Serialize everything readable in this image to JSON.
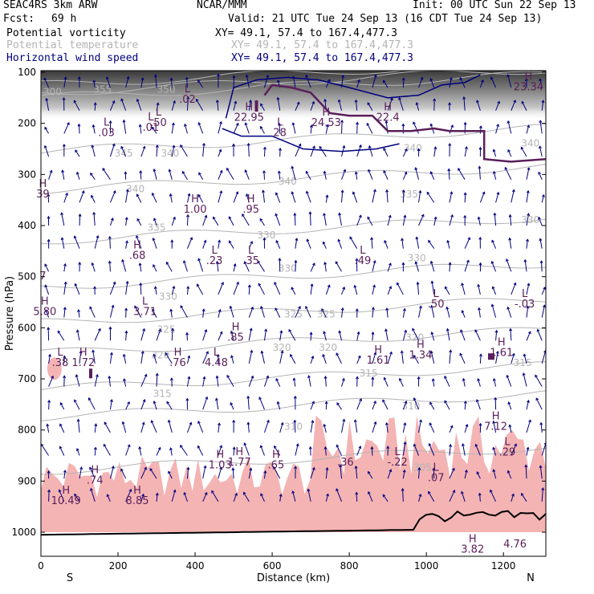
{
  "header": {
    "model": "SEAC4RS  3km ARW",
    "org": "NCAR/MMM",
    "init": "Init: 00 UTC Sun 22 Sep 13",
    "fcst_label": "Fcst:",
    "fcst_value": "69 h",
    "valid": "Valid: 21 UTC Tue 24 Sep 13 (16 CDT Tue 24 Sep 13)",
    "fields": [
      {
        "label": "Potential vorticity",
        "xy": "XY=  49.1, 57.4 to 167.4,477.3",
        "color": "#000000"
      },
      {
        "label": "Potential temperature",
        "xy": "XY=  49.1, 57.4 to 167.4,477.3",
        "color": "#b4b4b4"
      },
      {
        "label": "Horizontal wind speed",
        "xy": "XY=  49.1, 57.4 to 167.4,477.3",
        "color": "#00007f"
      }
    ]
  },
  "chart_data": {
    "type": "cross-section",
    "xlabel": "Distance (km)",
    "ylabel": "Pressure (hPa)",
    "xlim": [
      0,
      1310
    ],
    "ylim": [
      1050,
      100
    ],
    "x_ticks": [
      "0",
      "200",
      "400",
      "600",
      "800",
      "1000",
      "1200"
    ],
    "x_tick_values": [
      0,
      200,
      400,
      600,
      800,
      1000,
      1200
    ],
    "y_ticks": [
      "100",
      "200",
      "300",
      "400",
      "500",
      "600",
      "700",
      "800",
      "900",
      "1000"
    ],
    "y_tick_values": [
      100,
      200,
      300,
      400,
      500,
      600,
      700,
      800,
      900,
      1000
    ],
    "endpoints": {
      "left": "S",
      "right": "N"
    },
    "colors": {
      "theta": "#b4b4b4",
      "wind": "#00007f",
      "pv": "#5a1e5a",
      "shade": "#f4b4b4",
      "terrain": "#000000"
    },
    "theta_labels": [
      {
        "text": "300",
        "x": 30,
        "p": 145
      },
      {
        "text": "355",
        "x": 160,
        "p": 140
      },
      {
        "text": "350",
        "x": 325,
        "p": 140
      },
      {
        "text": "345",
        "x": 215,
        "p": 265
      },
      {
        "text": "340",
        "x": 335,
        "p": 265
      },
      {
        "text": "340",
        "x": 245,
        "p": 335
      },
      {
        "text": "340",
        "x": 640,
        "p": 320
      },
      {
        "text": "340",
        "x": 965,
        "p": 255
      },
      {
        "text": "340",
        "x": 1270,
        "p": 245
      },
      {
        "text": "335",
        "x": 955,
        "p": 345
      },
      {
        "text": "335",
        "x": 300,
        "p": 410
      },
      {
        "text": "330",
        "x": 585,
        "p": 425
      },
      {
        "text": "330",
        "x": 1270,
        "p": 395
      },
      {
        "text": "330",
        "x": 640,
        "p": 490
      },
      {
        "text": "330",
        "x": 975,
        "p": 470
      },
      {
        "text": "330",
        "x": 330,
        "p": 545
      },
      {
        "text": "325",
        "x": 325,
        "p": 610
      },
      {
        "text": "325",
        "x": 655,
        "p": 580
      },
      {
        "text": "325",
        "x": 740,
        "p": 580
      },
      {
        "text": "320",
        "x": 625,
        "p": 645
      },
      {
        "text": "320",
        "x": 745,
        "p": 645
      },
      {
        "text": "320",
        "x": 310,
        "p": 660
      },
      {
        "text": "320",
        "x": 970,
        "p": 625
      },
      {
        "text": "315",
        "x": 850,
        "p": 695
      },
      {
        "text": "315",
        "x": 1250,
        "p": 675
      },
      {
        "text": "315",
        "x": 315,
        "p": 735
      },
      {
        "text": "310",
        "x": 960,
        "p": 760
      },
      {
        "text": "310",
        "x": 655,
        "p": 800
      },
      {
        "text": "305",
        "x": 990,
        "p": 880
      }
    ],
    "extrema": [
      {
        "sym": "L",
        "val": ".02",
        "x": 380,
        "p": 160
      },
      {
        "sym": "H",
        "val": "22.95",
        "x": 540,
        "p": 195
      },
      {
        "sym": "L",
        "val": "28",
        "x": 620,
        "p": 225
      },
      {
        "sym": "H",
        "val": "24.53",
        "x": 740,
        "p": 205
      },
      {
        "sym": "H",
        "val": "22.4",
        "x": 900,
        "p": 195
      },
      {
        "sym": "L",
        "val": ".03",
        "x": 170,
        "p": 225
      },
      {
        "sym": "L",
        "val": ".01",
        "x": 285,
        "p": 215
      },
      {
        "sym": "H",
        "val": "23.34",
        "x": 1265,
        "p": 135
      },
      {
        "sym": "L",
        "val": ".50",
        "x": 305,
        "p": 205
      },
      {
        "sym": "H",
        "val": "39",
        "x": 5,
        "p": 345
      },
      {
        "sym": "H",
        "val": "1.00",
        "x": 400,
        "p": 375
      },
      {
        "sym": "H",
        "val": ".95",
        "x": 545,
        "p": 375
      },
      {
        "sym": "H",
        "val": ".68",
        "x": 250,
        "p": 465
      },
      {
        "sym": "L",
        "val": ".23",
        "x": 450,
        "p": 475
      },
      {
        "sym": "L",
        "val": ".35",
        "x": 545,
        "p": 475
      },
      {
        "sym": "L",
        "val": ".49",
        "x": 835,
        "p": 475
      },
      {
        "sym": "",
        "val": "7",
        "x": 5,
        "p": 505
      },
      {
        "sym": "H",
        "val": "5.80",
        "x": 10,
        "p": 575
      },
      {
        "sym": "L",
        "val": "3.71",
        "x": 270,
        "p": 575
      },
      {
        "sym": "L",
        "val": ".50",
        "x": 1025,
        "p": 560
      },
      {
        "sym": "L",
        "val": "-.03",
        "x": 1255,
        "p": 560
      },
      {
        "sym": "H",
        "val": ".85",
        "x": 505,
        "p": 625
      },
      {
        "sym": "L",
        "val": ".38",
        "x": 50,
        "p": 675
      },
      {
        "sym": "H",
        "val": "1.72",
        "x": 110,
        "p": 675
      },
      {
        "sym": "H",
        "val": ".76",
        "x": 355,
        "p": 675
      },
      {
        "sym": "L",
        "val": "4.48",
        "x": 455,
        "p": 675
      },
      {
        "sym": "H",
        "val": "1.61",
        "x": 875,
        "p": 670
      },
      {
        "sym": "H",
        "val": "1.34",
        "x": 985,
        "p": 660
      },
      {
        "sym": "H",
        "val": "1.61",
        "x": 1195,
        "p": 655
      },
      {
        "sym": "H",
        "val": "7.12",
        "x": 1180,
        "p": 800
      },
      {
        "sym": "H",
        "val": "1.03",
        "x": 465,
        "p": 875
      },
      {
        "sym": "H",
        "val": "1.77",
        "x": 515,
        "p": 870
      },
      {
        "sym": "H",
        "val": ".65",
        "x": 610,
        "p": 875
      },
      {
        "sym": "",
        "val": ".36",
        "x": 790,
        "p": 870
      },
      {
        "sym": "L",
        "val": "-.22",
        "x": 925,
        "p": 870
      },
      {
        "sym": "L",
        "val": ".29",
        "x": 1210,
        "p": 850
      },
      {
        "sym": "H",
        "val": ".74",
        "x": 140,
        "p": 905
      },
      {
        "sym": "H",
        "val": "10.49",
        "x": 65,
        "p": 945
      },
      {
        "sym": "H",
        "val": "8.85",
        "x": 250,
        "p": 945
      },
      {
        "sym": "L",
        "val": ".07",
        "x": 1025,
        "p": 900
      },
      {
        "sym": "H",
        "val": "3.82",
        "x": 1120,
        "p": 1040
      },
      {
        "sym": "",
        "val": "4.76",
        "x": 1230,
        "p": 1030
      }
    ]
  }
}
